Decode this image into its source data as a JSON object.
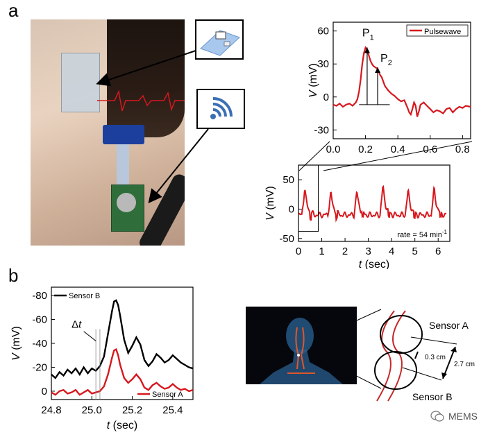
{
  "figure": {
    "panel_a": "a",
    "panel_b": "b",
    "watermark": "MEMS"
  },
  "colors": {
    "red": "#d6181e",
    "black": "#000000",
    "sensor_area": "#3a7be0",
    "flex": "#2b5db5"
  },
  "panel_b_diagram": {
    "sensor_a": "Sensor A",
    "sensor_b": "Sensor B",
    "dist_small": "0.3 cm",
    "dist_large": "2.7 cm"
  },
  "chart_data": [
    {
      "id": "pulsewave-zoom",
      "type": "line",
      "xlabel_var": "",
      "ylabel_var": "V",
      "ylabel_unit": "(mV)",
      "xlim": [
        0,
        0.85
      ],
      "ylim": [
        -38,
        68
      ],
      "xticks": [
        "0.0",
        "0.2",
        "0.4",
        "0.6",
        "0.8"
      ],
      "xtick_values": [
        0.0,
        0.2,
        0.4,
        0.6,
        0.8
      ],
      "yticks": [
        "60",
        "30",
        "0",
        "-30"
      ],
      "ytick_values": [
        60,
        30,
        0,
        -30
      ],
      "legend": "Pulsewave",
      "annotations": {
        "p1": "P",
        "p1_sub": "1",
        "p2": "P",
        "p2_sub": "2"
      },
      "series": [
        {
          "name": "Pulsewave",
          "x": [
            0.0,
            0.02,
            0.04,
            0.06,
            0.08,
            0.1,
            0.12,
            0.14,
            0.15,
            0.16,
            0.17,
            0.18,
            0.19,
            0.2,
            0.21,
            0.22,
            0.23,
            0.24,
            0.25,
            0.26,
            0.27,
            0.28,
            0.29,
            0.3,
            0.31,
            0.32,
            0.34,
            0.36,
            0.38,
            0.4,
            0.42,
            0.44,
            0.46,
            0.47,
            0.48,
            0.49,
            0.5,
            0.51,
            0.52,
            0.53,
            0.54,
            0.56,
            0.58,
            0.6,
            0.62,
            0.64,
            0.66,
            0.68,
            0.7,
            0.72,
            0.74,
            0.76,
            0.78,
            0.8,
            0.82,
            0.85
          ],
          "y": [
            -7,
            -8,
            -6,
            -9,
            -7,
            -6,
            -8,
            -5,
            -2,
            5,
            16,
            30,
            40,
            45,
            43,
            38,
            33,
            30,
            28,
            27,
            26,
            24,
            20,
            18,
            14,
            10,
            6,
            3,
            1,
            -2,
            -4,
            -3,
            -10,
            -14,
            -16,
            -11,
            -5,
            -8,
            -18,
            -13,
            -7,
            -5,
            -8,
            -11,
            -14,
            -12,
            -13,
            -15,
            -11,
            -10,
            -14,
            -11,
            -9,
            -10,
            -8,
            -9
          ]
        }
      ]
    },
    {
      "id": "pulsewave-long",
      "type": "line",
      "xlabel_var": "t",
      "xlabel_unit": "(sec)",
      "ylabel_var": "V",
      "ylabel_unit": "(mV)",
      "xlim": [
        0,
        6.5
      ],
      "ylim": [
        -55,
        75
      ],
      "xticks": [
        "0",
        "1",
        "2",
        "3",
        "4",
        "5",
        "6"
      ],
      "xtick_values": [
        0,
        1,
        2,
        3,
        4,
        5,
        6
      ],
      "yticks": [
        "50",
        "0",
        "-50"
      ],
      "ytick_values": [
        50,
        0,
        -50
      ],
      "rate_text": "rate = 54 min",
      "rate_sup": "-1",
      "beat_times": [
        0.22,
        1.34,
        2.46,
        3.58,
        4.66,
        5.78
      ],
      "beat_amplitudes": [
        45,
        38,
        40,
        50,
        42,
        45
      ],
      "baseline": -10
    },
    {
      "id": "sensor-ab",
      "type": "line",
      "xlabel_var": "t",
      "xlabel_unit": "(sec)",
      "ylabel_var": "V",
      "ylabel_unit": "(mV)",
      "xlim": [
        24.8,
        25.5
      ],
      "ylim": [
        7,
        -87
      ],
      "xticks": [
        "24.8",
        "25.0",
        "25.2",
        "25.4"
      ],
      "xtick_values": [
        24.8,
        25.0,
        25.2,
        25.4
      ],
      "yticks": [
        "-80",
        "-60",
        "-40",
        "-20",
        "0"
      ],
      "ytick_values": [
        -80,
        -60,
        -40,
        -20,
        0
      ],
      "annotation": "Δt",
      "annotation_var": "t",
      "series": [
        {
          "name": "Sensor B",
          "x": [
            24.8,
            24.82,
            24.84,
            24.86,
            24.88,
            24.9,
            24.92,
            24.94,
            24.96,
            24.98,
            25.0,
            25.02,
            25.04,
            25.06,
            25.08,
            25.1,
            25.11,
            25.12,
            25.13,
            25.14,
            25.16,
            25.18,
            25.2,
            25.22,
            25.24,
            25.26,
            25.28,
            25.3,
            25.32,
            25.34,
            25.36,
            25.38,
            25.4,
            25.42,
            25.44,
            25.46,
            25.48,
            25.5
          ],
          "y": [
            -14,
            -11,
            -16,
            -13,
            -18,
            -15,
            -19,
            -14,
            -20,
            -15,
            -19,
            -17,
            -21,
            -29,
            -48,
            -67,
            -75,
            -76,
            -72,
            -63,
            -43,
            -32,
            -38,
            -45,
            -39,
            -26,
            -21,
            -25,
            -31,
            -28,
            -24,
            -26,
            -30,
            -27,
            -24,
            -22,
            -20,
            -19
          ]
        },
        {
          "name": "Sensor A",
          "x": [
            24.8,
            24.82,
            24.84,
            24.86,
            24.88,
            24.9,
            24.92,
            24.94,
            24.96,
            24.98,
            25.0,
            25.02,
            25.04,
            25.06,
            25.08,
            25.1,
            25.11,
            25.12,
            25.13,
            25.14,
            25.16,
            25.18,
            25.2,
            25.22,
            25.24,
            25.26,
            25.28,
            25.3,
            25.32,
            25.34,
            25.36,
            25.38,
            25.4,
            25.42,
            25.44,
            25.46,
            25.48,
            25.5
          ],
          "y": [
            1,
            3,
            0,
            -1,
            2,
            1,
            -1,
            3,
            1,
            -1,
            2,
            1,
            0,
            -4,
            -14,
            -28,
            -34,
            -35,
            -30,
            -22,
            -11,
            -7,
            -10,
            -14,
            -10,
            -3,
            -1,
            -5,
            -7,
            -4,
            -2,
            -3,
            -6,
            -3,
            -1,
            -2,
            0,
            -1
          ]
        }
      ]
    }
  ]
}
